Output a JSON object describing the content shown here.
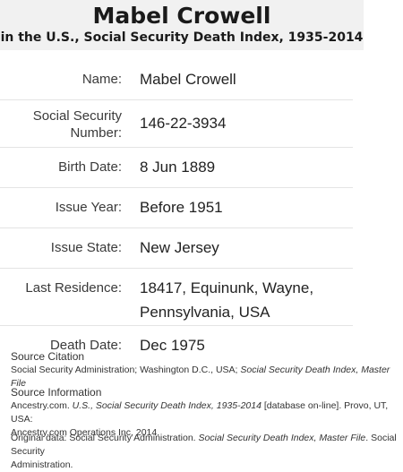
{
  "header": {
    "name": "Mabel Crowell",
    "subtitle": "in the U.S., Social Security Death Index, 1935-2014"
  },
  "fields": {
    "name_label": "Name:",
    "name_value": "Mabel Crowell",
    "ssn_label_line1": "Social Security",
    "ssn_label_line2": "Number:",
    "ssn_value": "146-22-3934",
    "birth_label": "Birth Date:",
    "birth_value": "8 Jun 1889",
    "issue_year_label": "Issue Year:",
    "issue_year_value": "Before 1951",
    "issue_state_label": "Issue State:",
    "issue_state_value": "New Jersey",
    "residence_label": "Last Residence:",
    "residence_line1": "18417, Equinunk, Wayne,",
    "residence_line2": "Pennsylvania, USA",
    "death_label": "Death Date:",
    "death_value": "Dec 1975"
  },
  "source_citation": {
    "heading": "Source Citation",
    "text_plain": "Social Security Administration; Washington D.C., USA; ",
    "text_italic": "Social Security Death Index, Master File"
  },
  "source_information": {
    "heading": "Source Information",
    "text_plain1": "Ancestry.com. ",
    "text_italic": "U.S., Social Security Death Index, 1935-2014",
    "text_plain2": " [database on-line]. Provo, UT, USA:",
    "text_line2": "Ancestry.com Operations Inc, 2014."
  },
  "original_data": {
    "text_plain1": "Original data: Social Security Administration. ",
    "text_italic": "Social Security Death Index, Master File",
    "text_plain2": ". Social Security",
    "text_line2": "Administration."
  }
}
